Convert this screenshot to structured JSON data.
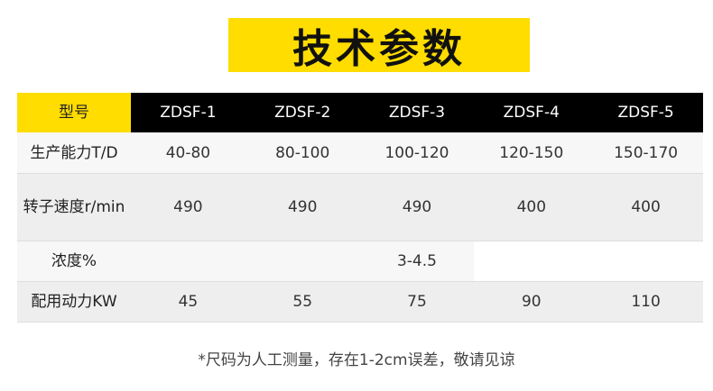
{
  "title": "技术参数",
  "table": {
    "header": {
      "label": "型号",
      "models": [
        "ZDSF-1",
        "ZDSF-2",
        "ZDSF-3",
        "ZDSF-4",
        "ZDSF-5"
      ]
    },
    "rows": [
      {
        "label": "生产能力T/D",
        "values": [
          "40-80",
          "80-100",
          "100-120",
          "120-150",
          "150-170"
        ]
      },
      {
        "label": "转子速度r/min",
        "values": [
          "490",
          "490",
          "490",
          "400",
          "400"
        ]
      },
      {
        "label": "浓度%",
        "values": [
          "",
          "",
          "3-4.5",
          "",
          ""
        ]
      },
      {
        "label": "配用动力KW",
        "values": [
          "45",
          "55",
          "75",
          "90",
          "110"
        ]
      }
    ]
  },
  "footnote": "*尺码为人工测量，存在1-2cm误差，敬请见谅",
  "colors": {
    "accent": "#ffdd00",
    "header_bg": "#000000"
  }
}
